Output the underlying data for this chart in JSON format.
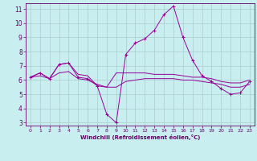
{
  "xlabel": "Windchill (Refroidissement éolien,°C)",
  "bg_color": "#c8eef0",
  "line_color": "#990099",
  "grid_color": "#aacccc",
  "text_color": "#660066",
  "xlim": [
    -0.5,
    23.5
  ],
  "ylim": [
    2.8,
    11.4
  ],
  "yticks": [
    3,
    4,
    5,
    6,
    7,
    8,
    9,
    10,
    11
  ],
  "xticks": [
    0,
    1,
    2,
    3,
    4,
    5,
    6,
    7,
    8,
    9,
    10,
    11,
    12,
    13,
    14,
    15,
    16,
    17,
    18,
    19,
    20,
    21,
    22,
    23
  ],
  "line1_x": [
    0,
    1,
    2,
    3,
    4,
    5,
    6,
    7,
    8,
    9,
    10,
    11,
    12,
    13,
    14,
    15,
    16,
    17,
    18,
    19,
    20,
    21,
    22,
    23
  ],
  "line1_y": [
    6.2,
    6.5,
    6.1,
    7.1,
    7.2,
    6.2,
    6.1,
    5.6,
    3.6,
    3.0,
    7.8,
    8.6,
    8.9,
    9.5,
    10.6,
    11.2,
    9.0,
    7.4,
    6.3,
    5.9,
    5.4,
    5.0,
    5.1,
    5.9
  ],
  "line2_x": [
    0,
    1,
    2,
    3,
    4,
    5,
    6,
    7,
    8,
    9,
    10,
    11,
    12,
    13,
    14,
    15,
    16,
    17,
    18,
    19,
    20,
    21,
    22,
    23
  ],
  "line2_y": [
    6.2,
    6.5,
    6.1,
    7.1,
    7.2,
    6.4,
    6.3,
    5.6,
    5.5,
    6.5,
    6.5,
    6.5,
    6.5,
    6.4,
    6.4,
    6.4,
    6.3,
    6.2,
    6.2,
    6.1,
    5.9,
    5.8,
    5.8,
    6.0
  ],
  "line3_x": [
    0,
    1,
    2,
    3,
    4,
    5,
    6,
    7,
    8,
    9,
    10,
    11,
    12,
    13,
    14,
    15,
    16,
    17,
    18,
    19,
    20,
    21,
    22,
    23
  ],
  "line3_y": [
    6.2,
    6.3,
    6.1,
    6.5,
    6.6,
    6.1,
    6.0,
    5.7,
    5.5,
    5.5,
    5.9,
    6.0,
    6.1,
    6.1,
    6.1,
    6.1,
    6.0,
    6.0,
    5.9,
    5.8,
    5.7,
    5.5,
    5.5,
    5.7
  ]
}
